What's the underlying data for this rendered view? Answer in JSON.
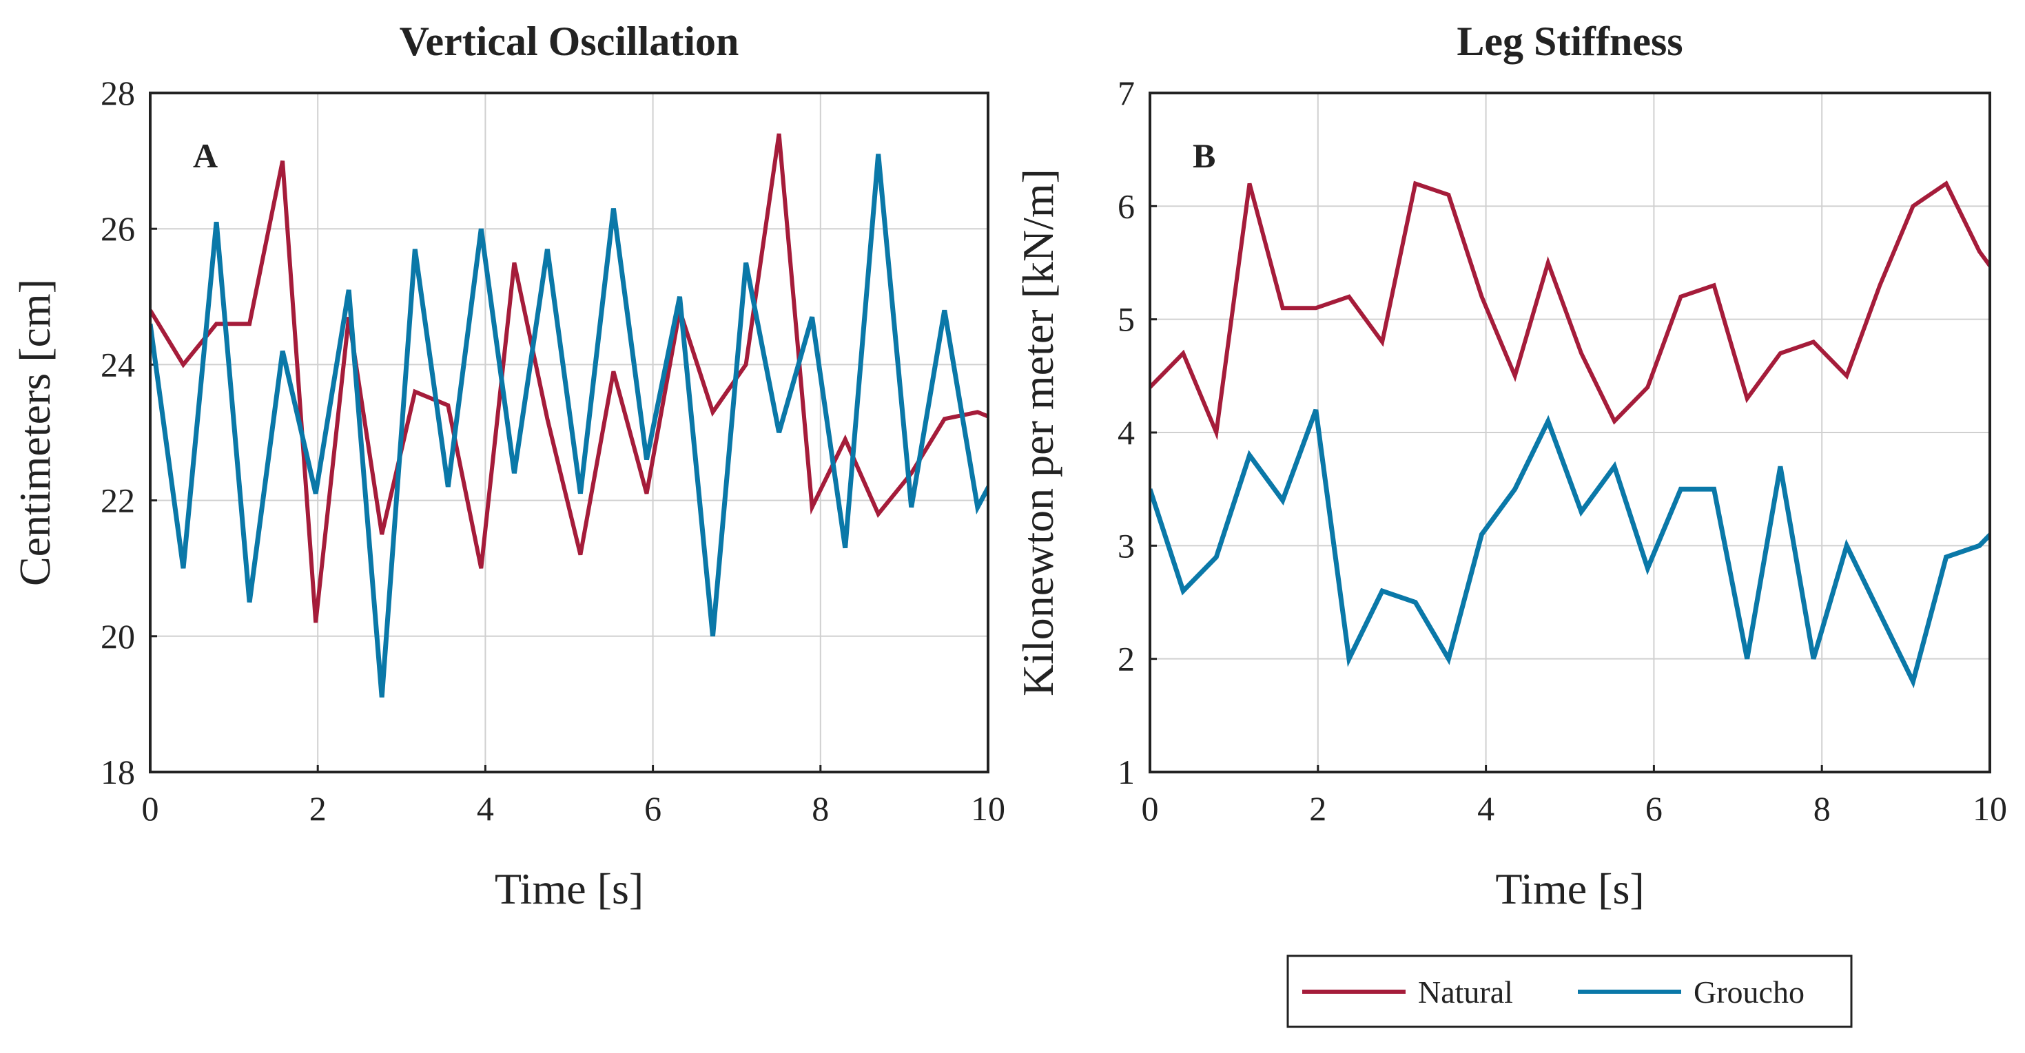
{
  "colors": {
    "natural": "#a51c3a",
    "groucho": "#0a78a8",
    "grid": "#d0d0d0",
    "axis": "#222222"
  },
  "legend": [
    {
      "name": "Natural",
      "color": "#a51c3a"
    },
    {
      "name": "Groucho",
      "color": "#0a78a8"
    }
  ],
  "chart_data": [
    {
      "type": "line",
      "title": "Vertical Oscillation",
      "panel_label": "A",
      "xlabel": "Time [s]",
      "ylabel": "Centimeters [cm]",
      "xlim": [
        0,
        10
      ],
      "ylim": [
        18,
        28
      ],
      "xticks": [
        0,
        2,
        4,
        6,
        8,
        10
      ],
      "yticks": [
        18,
        20,
        22,
        24,
        26,
        28
      ],
      "grid": true,
      "x_step": 0.395,
      "series": [
        {
          "name": "Natural",
          "values": [
            24.8,
            24.0,
            24.6,
            24.6,
            27.0,
            20.2,
            24.7,
            21.5,
            23.6,
            23.4,
            21.0,
            25.5,
            23.2,
            21.2,
            23.9,
            22.1,
            24.8,
            23.3,
            24.0,
            27.4,
            21.9,
            22.9,
            21.8,
            22.4,
            23.2,
            23.3,
            23.1
          ]
        },
        {
          "name": "Groucho",
          "values": [
            24.6,
            21.0,
            26.1,
            20.5,
            24.2,
            22.1,
            25.1,
            19.1,
            25.7,
            22.2,
            26.0,
            22.4,
            25.7,
            22.1,
            26.3,
            22.6,
            25.0,
            20.0,
            25.5,
            23.0,
            24.7,
            21.3,
            27.1,
            21.9,
            24.8,
            21.9,
            22.8
          ]
        }
      ]
    },
    {
      "type": "line",
      "title": "Leg Stiffness",
      "panel_label": "B",
      "xlabel": "Time [s]",
      "ylabel": "Kilonewton per meter [kN/m]",
      "xlim": [
        0,
        10
      ],
      "ylim": [
        1,
        7
      ],
      "xticks": [
        0,
        2,
        4,
        6,
        8,
        10
      ],
      "yticks": [
        1,
        2,
        3,
        4,
        5,
        6,
        7
      ],
      "grid": true,
      "x_step": 0.395,
      "series": [
        {
          "name": "Natural",
          "values": [
            4.4,
            4.7,
            4.0,
            6.2,
            5.1,
            5.1,
            5.2,
            4.8,
            6.2,
            6.1,
            5.2,
            4.5,
            5.5,
            4.7,
            4.1,
            4.4,
            5.2,
            5.3,
            4.3,
            4.7,
            4.8,
            4.5,
            5.3,
            6.0,
            6.2,
            5.6,
            5.2
          ]
        },
        {
          "name": "Groucho",
          "values": [
            3.5,
            2.6,
            2.9,
            3.8,
            3.4,
            4.2,
            2.0,
            2.6,
            2.5,
            2.0,
            3.1,
            3.5,
            4.1,
            3.3,
            3.7,
            2.8,
            3.5,
            3.5,
            2.0,
            3.7,
            2.0,
            3.0,
            2.4,
            1.8,
            2.9,
            3.0,
            3.3
          ]
        }
      ]
    }
  ]
}
